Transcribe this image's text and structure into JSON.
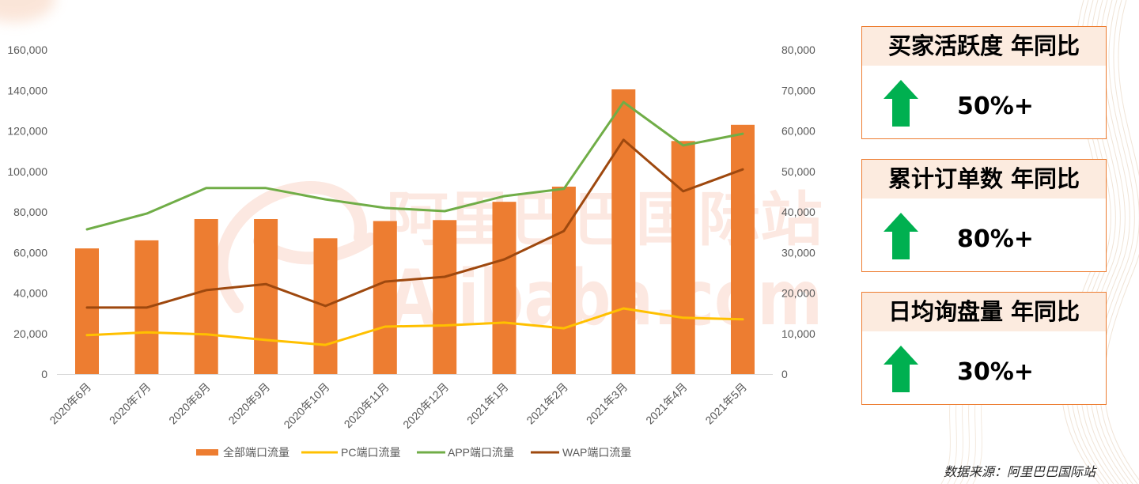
{
  "chart_data": {
    "type": "bar",
    "categories": [
      "2020年6月",
      "2020年7月",
      "2020年8月",
      "2020年9月",
      "2020年10月",
      "2020年11月",
      "2020年12月",
      "2021年1月",
      "2021年2月",
      "2021年3月",
      "2021年4月",
      "2021年5月"
    ],
    "ylim": [
      0,
      160000
    ],
    "y_ticks": [
      "0",
      "20,000",
      "40,000",
      "60,000",
      "80,000",
      "100,000",
      "120,000",
      "140,000",
      "160,000"
    ],
    "y2lim": [
      0,
      80000
    ],
    "y2_ticks": [
      "0",
      "10,000",
      "20,000",
      "30,000",
      "40,000",
      "50,000",
      "60,000",
      "70,000",
      "80,000"
    ],
    "grid": false,
    "legend_position": "bottom",
    "series": [
      {
        "name": "全部端口流量",
        "type": "bar",
        "axis": "left",
        "color": "#ED7D31",
        "values": [
          62000,
          66000,
          76500,
          76500,
          67000,
          75500,
          76000,
          85000,
          92500,
          140500,
          115000,
          123000
        ]
      },
      {
        "name": "PC端口流量",
        "type": "line",
        "axis": "right",
        "color": "#FFC000",
        "values": [
          9600,
          10300,
          9800,
          8400,
          7200,
          11700,
          12000,
          12700,
          11300,
          16200,
          13900,
          13500
        ]
      },
      {
        "name": "APP端口流量",
        "type": "line",
        "axis": "right",
        "color": "#70AD47",
        "values": [
          35700,
          39600,
          45900,
          45900,
          43100,
          41000,
          40200,
          43900,
          45700,
          67100,
          56400,
          59300
        ]
      },
      {
        "name": "WAP端口流量",
        "type": "line",
        "axis": "right",
        "color": "#9E480E",
        "values": [
          16400,
          16400,
          20700,
          22200,
          16800,
          22800,
          24000,
          28300,
          35300,
          57800,
          45100,
          50500
        ]
      }
    ]
  },
  "stats": [
    {
      "title": "买家活跃度 年同比",
      "value": "50%+",
      "icon": "up-arrow-icon"
    },
    {
      "title": "累计订单数 年同比",
      "value": "80%+",
      "icon": "up-arrow-icon"
    },
    {
      "title": "日均询盘量 年同比",
      "value": "30%+",
      "icon": "up-arrow-icon"
    }
  ],
  "source_note": "数据来源：阿里巴巴国际站",
  "watermark": {
    "cn": "阿里巴巴国际站",
    "en": "Alibaba.com"
  },
  "colors": {
    "accent": "#ED7D31",
    "card_header_bg": "#FCEBDF",
    "up_arrow": "#00B050",
    "axis_text": "#595959"
  }
}
